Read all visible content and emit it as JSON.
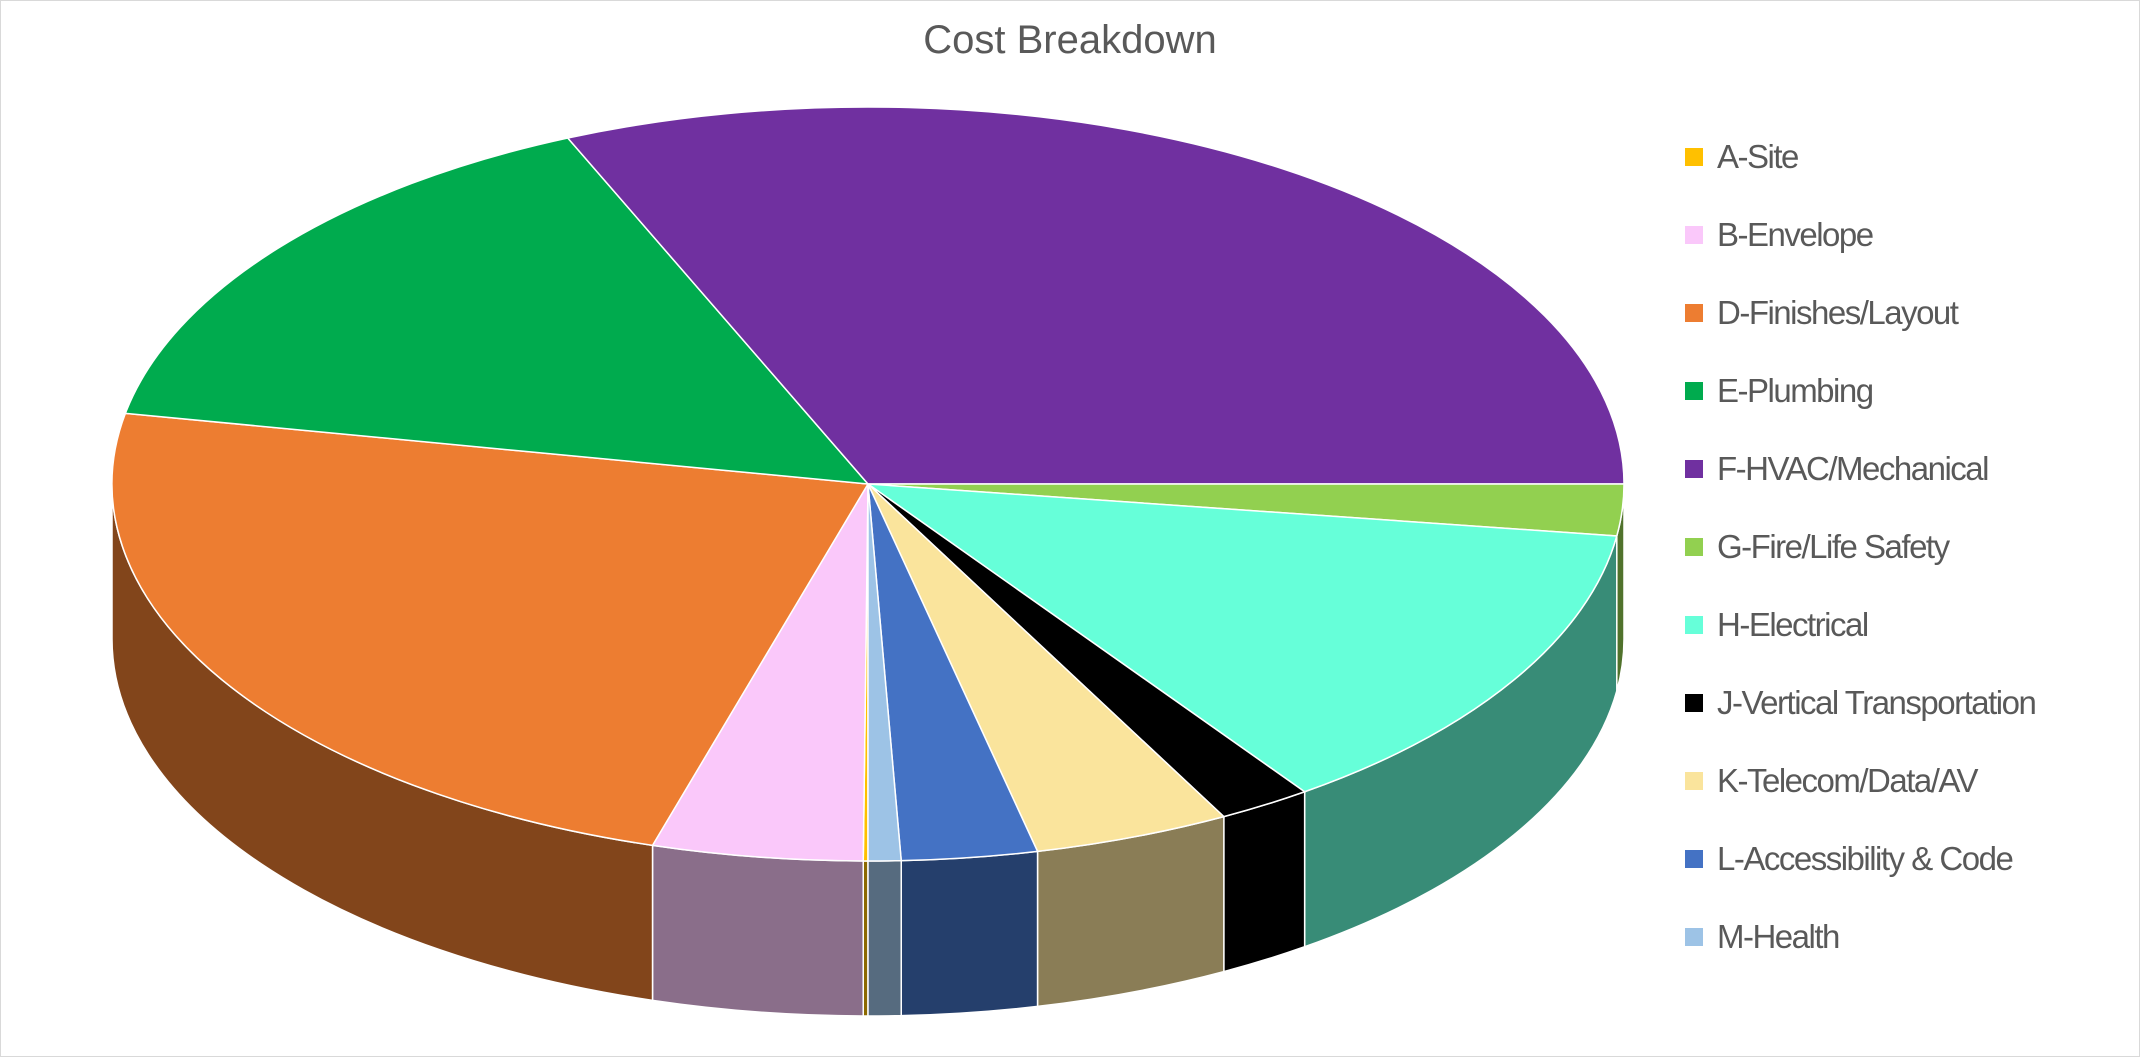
{
  "chart_data": {
    "type": "pie",
    "title": "Cost Breakdown",
    "legend_position": "right",
    "three_d": true,
    "slices": [
      {
        "name": "A-Site",
        "value": 0.1,
        "color": "#FFC000"
      },
      {
        "name": "B-Envelope",
        "value": 4.5,
        "color": "#FAC8FA"
      },
      {
        "name": "D-Finishes/Layout",
        "value": 23.4,
        "color": "#ED7D31"
      },
      {
        "name": "E-Plumbing",
        "value": 15.5,
        "color": "#00AB4E"
      },
      {
        "name": "F-HVAC/Mechanical",
        "value": 31.5,
        "color": "#7030A0"
      },
      {
        "name": "G-Fire/Life Safety",
        "value": 2.2,
        "color": "#92D050"
      },
      {
        "name": "H-Electrical",
        "value": 13.0,
        "color": "#66FFD9"
      },
      {
        "name": "J-Vertical Transportation",
        "value": 2.0,
        "color": "#000000"
      },
      {
        "name": "K-Telecom/Data/AV",
        "value": 4.2,
        "color": "#FAE49C"
      },
      {
        "name": "L-Accessibility & Code",
        "value": 2.9,
        "color": "#4472C4"
      },
      {
        "name": "M-Health",
        "value": 0.7,
        "color": "#9DC3E6"
      }
    ]
  }
}
